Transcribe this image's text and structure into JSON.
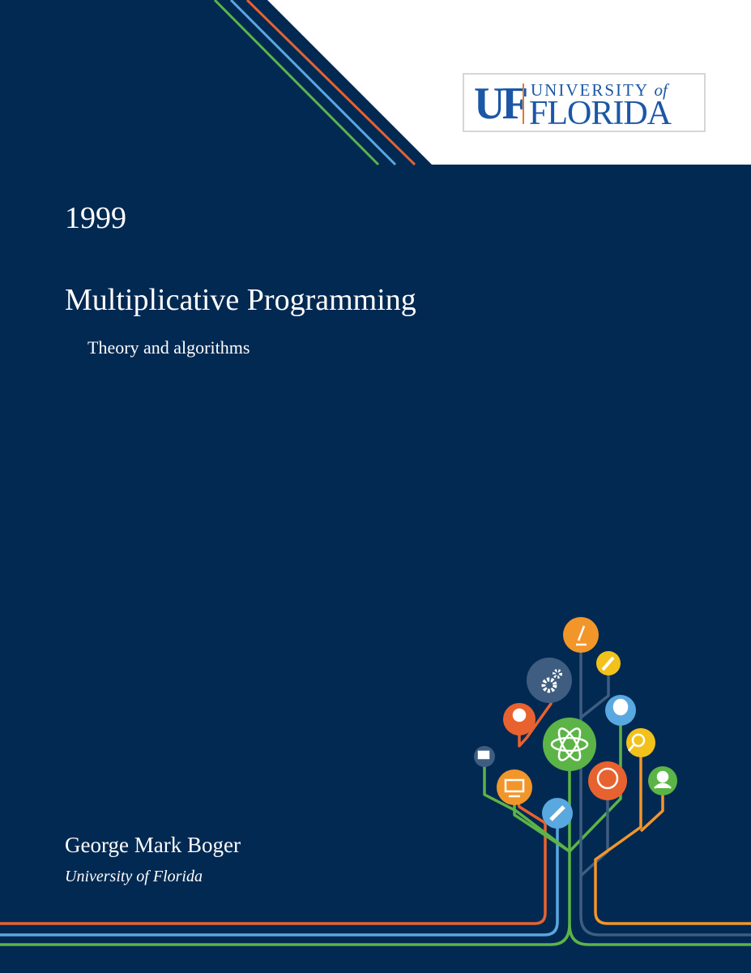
{
  "logo": {
    "uf": "UF",
    "university": "UNIVERSITY",
    "of": "of",
    "florida": "FLORIDA"
  },
  "cover": {
    "year": "1999",
    "title": "Multiplicative Programming",
    "subtitle": "Theory and algorithms",
    "author": "George Mark Boger",
    "institution": "University of Florida"
  },
  "colors": {
    "background": "#022952",
    "green": "#5cb447",
    "blue": "#5aa8e0",
    "orange": "#e8622f",
    "amber": "#f2962a",
    "slate": "#3e5d80",
    "yellow": "#f2c21b"
  },
  "tree_icons": [
    "microscope-icon",
    "paintbrush-icon",
    "gears-icon",
    "lightbulb-icon",
    "person-icon",
    "atom-icon",
    "magnifier-icon",
    "chat-icon",
    "globe-icon",
    "child-icon",
    "monitor-icon",
    "pencil-icon"
  ]
}
